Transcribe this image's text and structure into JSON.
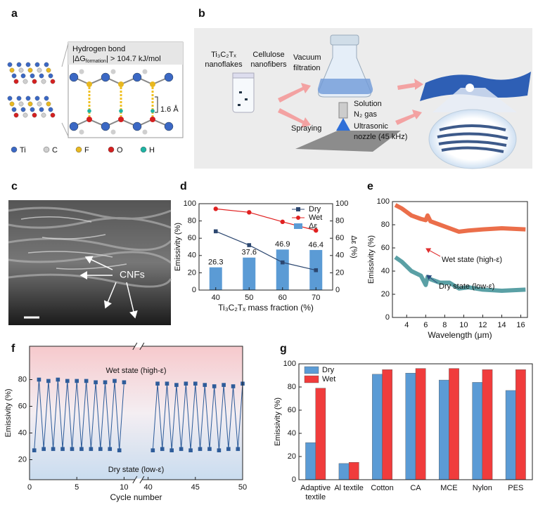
{
  "panel_labels": [
    "a",
    "b",
    "c",
    "d",
    "e",
    "f",
    "g"
  ],
  "panel_a": {
    "title": "Hydrogen bond",
    "energy": {
      "prefix": "|ΔG",
      "sub": "formation",
      "suffix": "| > 104.7 kJ/mol"
    },
    "distance": "1.6 Å",
    "legend": [
      {
        "label": "Ti",
        "color": "#3b68c4"
      },
      {
        "label": "C",
        "color": "#cfcfcf"
      },
      {
        "label": "F",
        "color": "#e8b820"
      },
      {
        "label": "O",
        "color": "#d42020"
      },
      {
        "label": "H",
        "color": "#1fb3a3"
      }
    ]
  },
  "panel_b": {
    "mxene": [
      "Ti₃C₂Tₓ",
      "nanoflakes"
    ],
    "cellulose": [
      "Cellulose",
      "nanofibers"
    ],
    "vacuum": [
      "Vacuum",
      "filtration"
    ],
    "spraying": "Spraying",
    "solution": "Solution",
    "gas": "N₂ gas",
    "nozzle": [
      "Ultrasonic",
      "nozzle (45 kHz)"
    ]
  },
  "panel_c": {
    "label": "CNFs"
  },
  "chart_data": [
    {
      "type": "combo",
      "xlabel": "Ti₃C₂Tₓ mass fraction (%)",
      "ylabel": "Emissivity (%)",
      "y2label": "Δε (%)",
      "x": [
        40,
        50,
        60,
        70
      ],
      "xlim": [
        35,
        75
      ],
      "xticks": [
        40,
        50,
        60,
        70
      ],
      "ylim": [
        0,
        100
      ],
      "yticks": [
        0,
        20,
        40,
        60,
        80,
        100
      ],
      "y2lim": [
        0,
        100
      ],
      "y2ticks": [
        0,
        20,
        40,
        60,
        80,
        100
      ],
      "legend": "upper right",
      "series": [
        {
          "name": "Dry",
          "type": "line",
          "marker": "square",
          "color": "#2c4770",
          "values": [
            68,
            52,
            32,
            23
          ]
        },
        {
          "name": "Wet",
          "type": "line",
          "marker": "circle",
          "color": "#e02020",
          "values": [
            94,
            90,
            79,
            69
          ]
        },
        {
          "name": "Δε",
          "type": "bar",
          "axis": "y2",
          "color": "#5b9bd5",
          "data_labels": true,
          "values": [
            26.3,
            37.6,
            46.9,
            46.4
          ]
        }
      ]
    },
    {
      "type": "line",
      "xlabel": "Wavelength (μm)",
      "ylabel": "Emissivity (%)",
      "x": [
        2.8,
        3.5,
        4.5,
        5.5,
        6.0,
        6.2,
        6.5,
        7.5,
        8.5,
        9.5,
        10.5,
        12,
        14,
        16.5
      ],
      "xlim": [
        2.5,
        16.7
      ],
      "xticks": [
        4,
        6,
        8,
        10,
        12,
        14,
        16
      ],
      "ylim": [
        0,
        100
      ],
      "yticks": [
        0,
        20,
        40,
        60,
        80,
        100
      ],
      "series": [
        {
          "name": "Wet state (high-ε)",
          "color": "#e8552a",
          "label_color": "#e03030",
          "values": [
            97,
            94,
            88,
            85,
            84,
            88,
            83,
            80,
            77,
            74,
            75,
            76,
            77,
            76
          ]
        },
        {
          "name": "Dry state (low-ε)",
          "color": "#3d8f95",
          "label_color": "#2c4d80",
          "values": [
            52,
            48,
            40,
            36,
            28,
            35,
            33,
            30,
            30,
            25,
            26,
            24,
            23,
            24
          ]
        }
      ]
    },
    {
      "type": "line",
      "xlabel": "Cycle number",
      "ylabel": "Emissivity (%)",
      "xlim": [
        0,
        50
      ],
      "xbreak": [
        11,
        39.5
      ],
      "xticks": [
        0,
        5,
        10,
        40,
        45,
        50
      ],
      "ylim": [
        5,
        105
      ],
      "yticks": [
        20,
        40,
        60,
        80
      ],
      "color": "#2e5c9a",
      "marker": "square",
      "annotations": [
        "Wet state (high-ε)",
        "Dry state (low-ε)"
      ],
      "segments": [
        {
          "x": [
            0.5,
            1,
            1.5,
            2,
            2.5,
            3,
            3.5,
            4,
            4.5,
            5,
            5.5,
            6,
            6.5,
            7,
            7.5,
            8,
            8.5,
            9,
            9.5,
            10
          ],
          "values": [
            27,
            80,
            28,
            79,
            28,
            80,
            28,
            79,
            28,
            79,
            28,
            79,
            28,
            78,
            28,
            78,
            28,
            79,
            27,
            78
          ]
        },
        {
          "x": [
            40.5,
            41,
            41.5,
            42,
            42.5,
            43,
            43.5,
            44,
            44.5,
            45,
            45.5,
            46,
            46.5,
            47,
            47.5,
            48,
            48.5,
            49,
            49.5,
            50
          ],
          "values": [
            27,
            77,
            28,
            77,
            27,
            76,
            28,
            77,
            27,
            77,
            28,
            76,
            28,
            75,
            27,
            76,
            28,
            75,
            28,
            77
          ]
        }
      ]
    },
    {
      "type": "bar",
      "ylabel": "Emissivity (%)",
      "categories": [
        "Adaptive textile",
        "Al textile",
        "Cotton",
        "CA",
        "MCE",
        "Nylon",
        "PES"
      ],
      "ylim": [
        0,
        100
      ],
      "yticks": [
        0,
        20,
        40,
        60,
        80,
        100
      ],
      "legend": "upper left",
      "series": [
        {
          "name": "Dry",
          "color": "#5b9bd5",
          "values": [
            32,
            14,
            91,
            92,
            86,
            84,
            77
          ]
        },
        {
          "name": "Wet",
          "color": "#f03c3c",
          "values": [
            79,
            15,
            95,
            96,
            96,
            95,
            95
          ]
        }
      ]
    }
  ]
}
